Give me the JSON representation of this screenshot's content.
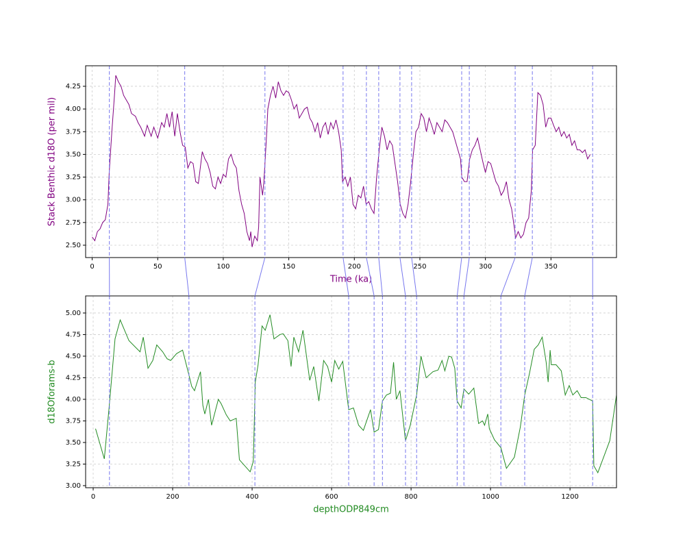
{
  "chart_data": [
    {
      "type": "line",
      "xlabel": "Time (ka)",
      "ylabel": "Stack Benthic d18O (per mil)",
      "label_color": "#800080",
      "xlim": [
        -5,
        400
      ],
      "ylim": [
        2.364,
        4.476
      ],
      "xticks": [
        0,
        50,
        100,
        150,
        200,
        250,
        300,
        350
      ],
      "yticks": [
        {
          "value": 2.5,
          "label": "2.50"
        },
        {
          "value": 2.75,
          "label": "2.75"
        },
        {
          "value": 3.0,
          "label": "3.00"
        },
        {
          "value": 3.25,
          "label": "3.25"
        },
        {
          "value": 3.5,
          "label": "3.50"
        },
        {
          "value": 3.75,
          "label": "3.75"
        },
        {
          "value": 4.0,
          "label": "4.00"
        },
        {
          "value": 4.25,
          "label": "4.25"
        }
      ],
      "grid": true,
      "vline_color": "#7777ee",
      "vlines": [
        13.1,
        70.6,
        131.8,
        191.4,
        209.2,
        218.6,
        234.8,
        243.7,
        281.9,
        287.7,
        322.7,
        335.8,
        381.8
      ],
      "series": [
        {
          "color": "#800080",
          "x": [
            0,
            2,
            4,
            6,
            8,
            10,
            12,
            13,
            15,
            17,
            18,
            20,
            22,
            24,
            26,
            28,
            30,
            33,
            35,
            37,
            40,
            42,
            45,
            47,
            50,
            53,
            55,
            57,
            59,
            61,
            63,
            65,
            67,
            69,
            71,
            73,
            75,
            77,
            79,
            81,
            84,
            86,
            88,
            90,
            92,
            94,
            96,
            98,
            100,
            102,
            104,
            106,
            108,
            110,
            112,
            114,
            116,
            118,
            120,
            121,
            122,
            124,
            126,
            127,
            128,
            130,
            131,
            133,
            134,
            136,
            138,
            140,
            142,
            144,
            146,
            148,
            150,
            152,
            154,
            156,
            158,
            160,
            162,
            164,
            166,
            168,
            170,
            172,
            174,
            176,
            178,
            180,
            182,
            184,
            186,
            188,
            190,
            191,
            193,
            195,
            197,
            199,
            201,
            203,
            205,
            207,
            209,
            211,
            213,
            215,
            217,
            219,
            221,
            223,
            225,
            227,
            229,
            231,
            233,
            235,
            237,
            239,
            241,
            243,
            245,
            247,
            249,
            251,
            253,
            255,
            257,
            259,
            261,
            263,
            265,
            267,
            269,
            271,
            273,
            275,
            277,
            279,
            281,
            282,
            284,
            286,
            288,
            290,
            292,
            294,
            296,
            298,
            300,
            302,
            304,
            306,
            308,
            310,
            312,
            314,
            316,
            318,
            320,
            322,
            323,
            325,
            327,
            329,
            331,
            333,
            335,
            336,
            338,
            340,
            342,
            344,
            346,
            348,
            350,
            352,
            354,
            356,
            358,
            360,
            362,
            364,
            366,
            368,
            370,
            372,
            374,
            376,
            378,
            380
          ],
          "values": [
            2.59,
            2.55,
            2.65,
            2.68,
            2.75,
            2.78,
            2.95,
            3.3,
            3.75,
            4.15,
            4.37,
            4.3,
            4.25,
            4.15,
            4.1,
            4.05,
            3.95,
            3.92,
            3.85,
            3.8,
            3.7,
            3.82,
            3.7,
            3.8,
            3.68,
            3.85,
            3.8,
            3.95,
            3.8,
            3.97,
            3.7,
            3.95,
            3.75,
            3.6,
            3.58,
            3.35,
            3.42,
            3.4,
            3.2,
            3.18,
            3.53,
            3.45,
            3.4,
            3.3,
            3.15,
            3.12,
            3.25,
            3.18,
            3.28,
            3.25,
            3.45,
            3.5,
            3.4,
            3.35,
            3.1,
            2.95,
            2.85,
            2.65,
            2.55,
            2.65,
            2.48,
            2.6,
            2.55,
            2.7,
            3.25,
            3.05,
            3.2,
            3.7,
            4.0,
            4.15,
            4.25,
            4.12,
            4.3,
            4.2,
            4.15,
            4.2,
            4.18,
            4.1,
            4.0,
            4.05,
            3.9,
            3.95,
            4.0,
            4.02,
            3.9,
            3.85,
            3.75,
            3.85,
            3.68,
            3.8,
            3.85,
            3.72,
            3.85,
            3.78,
            3.88,
            3.75,
            3.55,
            3.2,
            3.25,
            3.15,
            3.25,
            2.95,
            2.9,
            3.05,
            3.02,
            3.15,
            2.95,
            2.98,
            2.9,
            2.85,
            3.25,
            3.55,
            3.8,
            3.7,
            3.55,
            3.65,
            3.6,
            3.4,
            3.2,
            2.95,
            2.85,
            2.8,
            2.95,
            3.2,
            3.5,
            3.75,
            3.8,
            3.95,
            3.9,
            3.75,
            3.9,
            3.82,
            3.72,
            3.85,
            3.8,
            3.75,
            3.88,
            3.85,
            3.8,
            3.75,
            3.65,
            3.55,
            3.45,
            3.25,
            3.2,
            3.2,
            3.45,
            3.55,
            3.6,
            3.68,
            3.55,
            3.42,
            3.3,
            3.42,
            3.4,
            3.3,
            3.2,
            3.15,
            3.05,
            3.1,
            3.2,
            3.0,
            2.9,
            2.7,
            2.58,
            2.65,
            2.58,
            2.62,
            2.75,
            2.8,
            3.1,
            3.55,
            3.6,
            4.18,
            4.15,
            4.05,
            3.8,
            3.9,
            3.9,
            3.82,
            3.75,
            3.8,
            3.7,
            3.75,
            3.68,
            3.72,
            3.6,
            3.65,
            3.55,
            3.55,
            3.52,
            3.55,
            3.45,
            3.5
          ]
        }
      ]
    },
    {
      "type": "line",
      "xlabel": "depthODP849cm",
      "ylabel": "d18Oforams-b",
      "label_color": "#228b22",
      "xlim": [
        -19,
        1317
      ],
      "ylim": [
        2.976,
        5.198
      ],
      "xticks": [
        0,
        200,
        400,
        600,
        800,
        1000,
        1200
      ],
      "yticks": [
        {
          "value": 3.0,
          "label": "3.00"
        },
        {
          "value": 3.25,
          "label": "3.25"
        },
        {
          "value": 3.5,
          "label": "3.50"
        },
        {
          "value": 3.75,
          "label": "3.75"
        },
        {
          "value": 4.0,
          "label": "4.00"
        },
        {
          "value": 4.25,
          "label": "4.25"
        },
        {
          "value": 4.5,
          "label": "4.50"
        },
        {
          "value": 4.75,
          "label": "4.75"
        },
        {
          "value": 5.0,
          "label": "5.00"
        }
      ],
      "grid": true,
      "vline_color": "#7777ee",
      "vlines": [
        41,
        241,
        407,
        643,
        707,
        728,
        786,
        814,
        916,
        933,
        1026,
        1086,
        1257
      ],
      "series": [
        {
          "color": "#228b22",
          "x": [
            6,
            28,
            40,
            55,
            68,
            90,
            118,
            126,
            138,
            150,
            160,
            175,
            186,
            195,
            210,
            225,
            240,
            248,
            255,
            270,
            276,
            281,
            290,
            298,
            315,
            322,
            335,
            345,
            360,
            368,
            395,
            403,
            408,
            415,
            425,
            433,
            445,
            455,
            470,
            478,
            490,
            498,
            505,
            517,
            528,
            545,
            555,
            568,
            580,
            590,
            600,
            608,
            618,
            628,
            643,
            655,
            668,
            680,
            698,
            707,
            718,
            728,
            738,
            748,
            756,
            763,
            772,
            786,
            798,
            814,
            825,
            838,
            855,
            868,
            878,
            885,
            895,
            902,
            910,
            916,
            926,
            933,
            945,
            958,
            970,
            980,
            985,
            993,
            997,
            1010,
            1026,
            1040,
            1060,
            1075,
            1086,
            1098,
            1110,
            1120,
            1130,
            1140,
            1145,
            1150,
            1153,
            1165,
            1178,
            1188,
            1198,
            1207,
            1218,
            1228,
            1240,
            1257,
            1260,
            1270,
            1300,
            1317
          ],
          "values": [
            3.66,
            3.31,
            3.9,
            4.7,
            4.92,
            4.68,
            4.55,
            4.72,
            4.36,
            4.45,
            4.63,
            4.55,
            4.47,
            4.45,
            4.53,
            4.57,
            4.3,
            4.15,
            4.1,
            4.32,
            3.93,
            3.83,
            4.0,
            3.7,
            4.0,
            3.95,
            3.82,
            3.75,
            3.78,
            3.3,
            3.16,
            3.28,
            4.2,
            4.4,
            4.85,
            4.8,
            4.98,
            4.7,
            4.75,
            4.76,
            4.68,
            4.38,
            4.72,
            4.55,
            4.8,
            4.22,
            4.38,
            3.98,
            4.45,
            4.38,
            4.2,
            4.45,
            4.35,
            4.44,
            3.88,
            3.9,
            3.7,
            3.64,
            3.88,
            3.62,
            3.65,
            3.98,
            4.05,
            4.07,
            4.43,
            4.0,
            4.1,
            3.52,
            3.7,
            4.05,
            4.5,
            4.25,
            4.32,
            4.34,
            4.45,
            4.33,
            4.5,
            4.49,
            4.36,
            3.98,
            3.9,
            4.12,
            4.06,
            4.13,
            3.72,
            3.75,
            3.7,
            3.83,
            3.66,
            3.53,
            3.44,
            3.2,
            3.33,
            3.68,
            4.05,
            4.3,
            4.58,
            4.63,
            4.72,
            4.43,
            4.2,
            4.57,
            4.4,
            4.4,
            4.33,
            4.05,
            4.16,
            4.05,
            4.1,
            4.02,
            4.02,
            3.98,
            3.23,
            3.15,
            3.52,
            4.05
          ]
        }
      ]
    }
  ]
}
